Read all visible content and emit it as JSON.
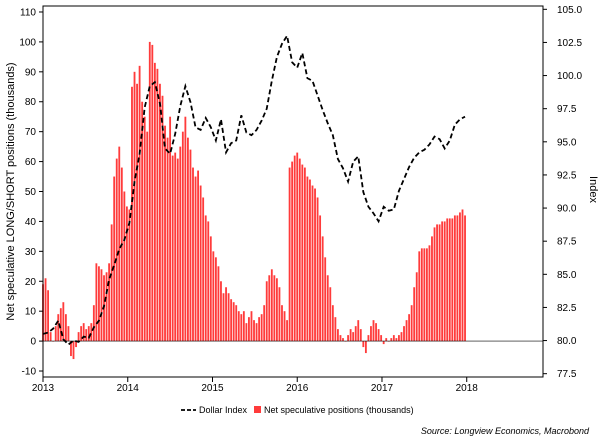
{
  "chart_data": {
    "type": "bar",
    "left_axis": {
      "label": "Net speculative LONG/SHORT positions (thousands)",
      "ylim": [
        -12,
        112
      ],
      "ticks": [
        -10,
        0,
        10,
        20,
        30,
        40,
        50,
        60,
        70,
        80,
        90,
        100,
        110
      ]
    },
    "right_axis": {
      "label": "Index",
      "ylim": [
        77.25,
        105.25
      ],
      "ticks": [
        "77.5",
        "80.0",
        "82.5",
        "85.0",
        "87.5",
        "90.0",
        "92.5",
        "95.0",
        "97.5",
        "100.0",
        "102.5",
        "105.0"
      ]
    },
    "x_axis": {
      "range": [
        2013.0,
        2018.9
      ],
      "ticks": [
        {
          "x": 2013,
          "label": "2013"
        },
        {
          "x": 2014,
          "label": "2014"
        },
        {
          "x": 2015,
          "label": "2015"
        },
        {
          "x": 2016,
          "label": "2016"
        },
        {
          "x": 2017,
          "label": "2017"
        },
        {
          "x": 2018,
          "label": "2018"
        }
      ]
    },
    "series": [
      {
        "name": "Net speculative positions (thousands)",
        "type": "bar",
        "axis": "left",
        "color": "#ff3b3b",
        "points": [
          [
            2013.0,
            19
          ],
          [
            2013.03,
            21
          ],
          [
            2013.06,
            17
          ],
          [
            2013.09,
            3
          ],
          [
            2013.12,
            0
          ],
          [
            2013.15,
            5
          ],
          [
            2013.18,
            9
          ],
          [
            2013.21,
            11
          ],
          [
            2013.24,
            13
          ],
          [
            2013.27,
            9
          ],
          [
            2013.3,
            5
          ],
          [
            2013.33,
            -5
          ],
          [
            2013.36,
            -6
          ],
          [
            2013.39,
            -2
          ],
          [
            2013.42,
            3
          ],
          [
            2013.45,
            5
          ],
          [
            2013.48,
            6
          ],
          [
            2013.51,
            4
          ],
          [
            2013.54,
            5
          ],
          [
            2013.57,
            6
          ],
          [
            2013.6,
            12
          ],
          [
            2013.63,
            26
          ],
          [
            2013.66,
            25
          ],
          [
            2013.69,
            24
          ],
          [
            2013.72,
            22
          ],
          [
            2013.75,
            23
          ],
          [
            2013.78,
            26
          ],
          [
            2013.81,
            39
          ],
          [
            2013.84,
            55
          ],
          [
            2013.87,
            61
          ],
          [
            2013.9,
            65
          ],
          [
            2013.93,
            58
          ],
          [
            2013.96,
            50
          ],
          [
            2013.99,
            45
          ],
          [
            2014.02,
            44
          ],
          [
            2014.05,
            85
          ],
          [
            2014.08,
            90
          ],
          [
            2014.11,
            86
          ],
          [
            2014.14,
            92
          ],
          [
            2014.17,
            80
          ],
          [
            2014.2,
            75
          ],
          [
            2014.23,
            70
          ],
          [
            2014.26,
            100
          ],
          [
            2014.29,
            99
          ],
          [
            2014.32,
            93
          ],
          [
            2014.35,
            91
          ],
          [
            2014.38,
            86
          ],
          [
            2014.41,
            82
          ],
          [
            2014.44,
            72
          ],
          [
            2014.47,
            68
          ],
          [
            2014.5,
            75
          ],
          [
            2014.53,
            62
          ],
          [
            2014.56,
            63
          ],
          [
            2014.59,
            61
          ],
          [
            2014.62,
            65
          ],
          [
            2014.65,
            70
          ],
          [
            2014.68,
            75
          ],
          [
            2014.71,
            68
          ],
          [
            2014.74,
            64
          ],
          [
            2014.77,
            58
          ],
          [
            2014.8,
            55
          ],
          [
            2014.83,
            57
          ],
          [
            2014.86,
            52
          ],
          [
            2014.89,
            48
          ],
          [
            2014.92,
            42
          ],
          [
            2014.95,
            40
          ],
          [
            2014.98,
            35
          ],
          [
            2015.01,
            30
          ],
          [
            2015.04,
            28
          ],
          [
            2015.07,
            25
          ],
          [
            2015.1,
            20
          ],
          [
            2015.13,
            16
          ],
          [
            2015.16,
            18
          ],
          [
            2015.19,
            16
          ],
          [
            2015.22,
            14
          ],
          [
            2015.25,
            13
          ],
          [
            2015.28,
            12
          ],
          [
            2015.31,
            10
          ],
          [
            2015.34,
            9
          ],
          [
            2015.37,
            10
          ],
          [
            2015.4,
            6
          ],
          [
            2015.43,
            8
          ],
          [
            2015.46,
            10
          ],
          [
            2015.49,
            7
          ],
          [
            2015.52,
            6
          ],
          [
            2015.55,
            8
          ],
          [
            2015.58,
            9
          ],
          [
            2015.61,
            12
          ],
          [
            2015.64,
            20
          ],
          [
            2015.67,
            22
          ],
          [
            2015.7,
            24
          ],
          [
            2015.73,
            22
          ],
          [
            2015.76,
            21
          ],
          [
            2015.79,
            18
          ],
          [
            2015.82,
            12
          ],
          [
            2015.85,
            10
          ],
          [
            2015.88,
            7
          ],
          [
            2015.91,
            58
          ],
          [
            2015.94,
            60
          ],
          [
            2015.97,
            62
          ],
          [
            2016.0,
            63
          ],
          [
            2016.03,
            61
          ],
          [
            2016.06,
            59
          ],
          [
            2016.09,
            58
          ],
          [
            2016.12,
            55
          ],
          [
            2016.15,
            54
          ],
          [
            2016.18,
            52
          ],
          [
            2016.21,
            51
          ],
          [
            2016.24,
            48
          ],
          [
            2016.27,
            42
          ],
          [
            2016.3,
            35
          ],
          [
            2016.33,
            28
          ],
          [
            2016.36,
            22
          ],
          [
            2016.39,
            18
          ],
          [
            2016.42,
            12
          ],
          [
            2016.45,
            8
          ],
          [
            2016.48,
            4
          ],
          [
            2016.51,
            2
          ],
          [
            2016.54,
            1
          ],
          [
            2016.57,
            0
          ],
          [
            2016.6,
            2
          ],
          [
            2016.63,
            4
          ],
          [
            2016.66,
            3
          ],
          [
            2016.69,
            5
          ],
          [
            2016.72,
            7
          ],
          [
            2016.75,
            4
          ],
          [
            2016.78,
            -2
          ],
          [
            2016.81,
            -4
          ],
          [
            2016.84,
            2
          ],
          [
            2016.87,
            5
          ],
          [
            2016.9,
            7
          ],
          [
            2016.93,
            6
          ],
          [
            2016.96,
            4
          ],
          [
            2016.99,
            2
          ],
          [
            2017.02,
            -1
          ],
          [
            2017.05,
            1
          ],
          [
            2017.08,
            0
          ],
          [
            2017.11,
            1
          ],
          [
            2017.14,
            2
          ],
          [
            2017.17,
            1
          ],
          [
            2017.2,
            2
          ],
          [
            2017.23,
            3
          ],
          [
            2017.26,
            5
          ],
          [
            2017.29,
            7
          ],
          [
            2017.32,
            9
          ],
          [
            2017.35,
            12
          ],
          [
            2017.38,
            18
          ],
          [
            2017.41,
            23
          ],
          [
            2017.44,
            30
          ],
          [
            2017.47,
            31
          ],
          [
            2017.5,
            31
          ],
          [
            2017.53,
            31
          ],
          [
            2017.56,
            32
          ],
          [
            2017.59,
            35
          ],
          [
            2017.62,
            38
          ],
          [
            2017.65,
            39
          ],
          [
            2017.68,
            39
          ],
          [
            2017.71,
            40
          ],
          [
            2017.74,
            40
          ],
          [
            2017.77,
            41
          ],
          [
            2017.8,
            41
          ],
          [
            2017.83,
            41
          ],
          [
            2017.86,
            42
          ],
          [
            2017.89,
            42
          ],
          [
            2017.92,
            43
          ],
          [
            2017.95,
            44
          ],
          [
            2017.98,
            42
          ]
        ]
      },
      {
        "name": "Dollar Index",
        "type": "line",
        "axis": "right",
        "color": "#000000",
        "dashed": true,
        "points": [
          [
            2013.0,
            80.5
          ],
          [
            2013.06,
            80.6
          ],
          [
            2013.12,
            80.9
          ],
          [
            2013.18,
            81.5
          ],
          [
            2013.24,
            80.1
          ],
          [
            2013.3,
            79.7
          ],
          [
            2013.36,
            80.0
          ],
          [
            2013.42,
            79.9
          ],
          [
            2013.48,
            80.3
          ],
          [
            2013.54,
            80.2
          ],
          [
            2013.6,
            81.0
          ],
          [
            2013.66,
            81.5
          ],
          [
            2013.72,
            82.6
          ],
          [
            2013.78,
            84.6
          ],
          [
            2013.84,
            85.7
          ],
          [
            2013.9,
            86.9
          ],
          [
            2013.96,
            87.6
          ],
          [
            2014.02,
            88.9
          ],
          [
            2014.08,
            92.0
          ],
          [
            2014.14,
            94.1
          ],
          [
            2014.2,
            97.6
          ],
          [
            2014.26,
            99.2
          ],
          [
            2014.32,
            99.5
          ],
          [
            2014.38,
            97.9
          ],
          [
            2014.44,
            94.5
          ],
          [
            2014.5,
            94.1
          ],
          [
            2014.56,
            95.6
          ],
          [
            2014.62,
            97.7
          ],
          [
            2014.68,
            99.2
          ],
          [
            2014.74,
            98.0
          ],
          [
            2014.8,
            96.1
          ],
          [
            2014.86,
            95.9
          ],
          [
            2014.92,
            96.8
          ],
          [
            2014.98,
            96.1
          ],
          [
            2015.04,
            95.1
          ],
          [
            2015.1,
            96.7
          ],
          [
            2015.16,
            94.2
          ],
          [
            2015.22,
            94.9
          ],
          [
            2015.28,
            95.1
          ],
          [
            2015.34,
            97.0
          ],
          [
            2015.4,
            95.7
          ],
          [
            2015.46,
            95.5
          ],
          [
            2015.52,
            95.9
          ],
          [
            2015.58,
            96.6
          ],
          [
            2015.64,
            97.5
          ],
          [
            2015.7,
            99.6
          ],
          [
            2015.76,
            101.4
          ],
          [
            2015.82,
            102.4
          ],
          [
            2015.88,
            103.0
          ],
          [
            2015.94,
            101.0
          ],
          [
            2016.0,
            100.6
          ],
          [
            2016.06,
            101.7
          ],
          [
            2016.12,
            99.8
          ],
          [
            2016.18,
            99.6
          ],
          [
            2016.24,
            98.5
          ],
          [
            2016.3,
            97.4
          ],
          [
            2016.36,
            96.4
          ],
          [
            2016.42,
            95.5
          ],
          [
            2016.48,
            93.7
          ],
          [
            2016.54,
            93.0
          ],
          [
            2016.6,
            92.0
          ],
          [
            2016.66,
            93.5
          ],
          [
            2016.72,
            93.9
          ],
          [
            2016.78,
            91.2
          ],
          [
            2016.84,
            90.1
          ],
          [
            2016.9,
            89.6
          ],
          [
            2016.96,
            89.0
          ],
          [
            2017.02,
            90.1
          ],
          [
            2017.08,
            89.8
          ],
          [
            2017.14,
            89.9
          ],
          [
            2017.2,
            91.3
          ],
          [
            2017.26,
            92.2
          ],
          [
            2017.32,
            93.1
          ],
          [
            2017.38,
            93.8
          ],
          [
            2017.44,
            94.2
          ],
          [
            2017.5,
            94.4
          ],
          [
            2017.56,
            94.8
          ],
          [
            2017.62,
            95.4
          ],
          [
            2017.68,
            95.2
          ],
          [
            2017.74,
            94.5
          ],
          [
            2017.8,
            95.1
          ],
          [
            2017.86,
            96.3
          ],
          [
            2017.92,
            96.7
          ],
          [
            2017.98,
            96.9
          ]
        ]
      }
    ],
    "legend": {
      "placement": "bottom",
      "entries": [
        {
          "label": "Dollar Index",
          "marker": "dashed-line",
          "color": "#000000"
        },
        {
          "label": "Net speculative positions (thousands)",
          "marker": "square",
          "color": "#ff3b3b"
        }
      ]
    },
    "source": "Source: Longview Economics, Macrobond",
    "grid": false
  }
}
